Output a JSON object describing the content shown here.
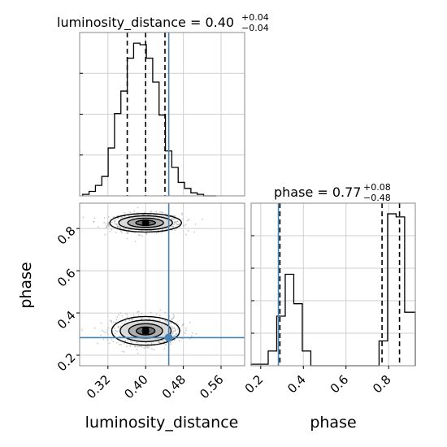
{
  "chart_data": {
    "type": "corner-plot",
    "parameters": [
      "luminosity_distance",
      "phase"
    ],
    "truth": {
      "luminosity_distance": 0.449,
      "phase": 0.283
    },
    "truth_color": "#4682b4",
    "panels": {
      "luminosity_distance_hist": {
        "type": "histogram",
        "title_main": "luminosity_distance = 0.40",
        "title_plus": "+0.04",
        "title_minus": "−0.04",
        "xlim": [
          0.26,
          0.61
        ],
        "bin_edges": [
          0.2665,
          0.28,
          0.2935,
          0.307,
          0.3205,
          0.334,
          0.3475,
          0.361,
          0.3745,
          0.388,
          0.4015,
          0.415,
          0.4285,
          0.442,
          0.4555,
          0.469,
          0.4825,
          0.496,
          0.5095,
          0.523,
          0.5365,
          0.55
        ],
        "counts": [
          1,
          3,
          7,
          13,
          32,
          55,
          70,
          92,
          102,
          101,
          92,
          76,
          54,
          30,
          19,
          9,
          5,
          2,
          1,
          0,
          0
        ],
        "quantiles": [
          0.361,
          0.4,
          0.441
        ],
        "ytick_count": 3
      },
      "phase_vs_distance": {
        "type": "2d-density",
        "xlim": [
          0.26,
          0.61
        ],
        "ylim": [
          0.15,
          0.92
        ],
        "xticks": [
          0.32,
          0.4,
          0.48,
          0.56
        ],
        "xtick_labels": [
          "0.32",
          "0.40",
          "0.48",
          "0.56"
        ],
        "yticks": [
          0.2,
          0.4,
          0.6,
          0.8
        ],
        "ytick_labels": [
          "0.2",
          "0.4",
          "0.6",
          "0.8"
        ],
        "xlabel": "luminosity_distance",
        "ylabel": "phase",
        "modes": [
          {
            "x": 0.4,
            "y": 0.827,
            "sx": 0.038,
            "sy": 0.022
          },
          {
            "x": 0.4,
            "y": 0.315,
            "sx": 0.036,
            "sy": 0.034
          }
        ]
      },
      "phase_hist": {
        "type": "histogram",
        "title_main": "phase = 0.77",
        "title_plus": "+0.08",
        "title_minus": "−0.48",
        "xlim": [
          0.155,
          0.925
        ],
        "bin_edges": [
          0.155,
          0.195,
          0.235,
          0.275,
          0.315,
          0.355,
          0.395,
          0.435,
          0.475,
          0.515,
          0.555,
          0.595,
          0.635,
          0.675,
          0.715,
          0.755,
          0.795,
          0.835,
          0.875,
          0.925
        ],
        "counts": [
          2,
          2,
          19,
          64,
          118,
          80,
          19,
          0,
          0,
          0,
          0,
          0,
          0,
          0,
          0,
          32,
          196,
          192,
          69
        ],
        "quantiles": [
          0.29,
          0.769,
          0.851
        ],
        "xticks": [
          0.2,
          0.4,
          0.6,
          0.8
        ],
        "xtick_labels": [
          "0.2",
          "0.4",
          "0.6",
          "0.8"
        ],
        "xlabel": "phase",
        "ytick_count": 4
      }
    }
  }
}
